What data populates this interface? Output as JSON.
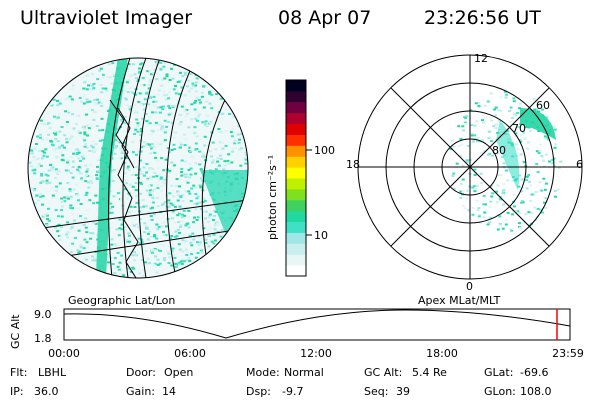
{
  "header": {
    "instrument": "Ultraviolet Imager",
    "date": "08 Apr 07",
    "time": "23:26:56 UT"
  },
  "left_panel": {
    "label": "Geographic Lat/Lon"
  },
  "right_panel": {
    "label": "Apex MLat/MLT",
    "mlt_labels": {
      "top": "12",
      "left": "18",
      "right": "6",
      "bottom": "0"
    },
    "mlat_labels": [
      "60",
      "70",
      "80"
    ]
  },
  "colorbar": {
    "unit": "photon cm⁻²s⁻¹",
    "ticks": [
      "100",
      "10"
    ],
    "colors": [
      "#ffffff",
      "#e8f6f6",
      "#c8eeee",
      "#9fe6e6",
      "#40e0c8",
      "#20d8a0",
      "#40d060",
      "#80e020",
      "#c0f000",
      "#ffff00",
      "#ffd000",
      "#ff9000",
      "#ff3000",
      "#e00000",
      "#b00030",
      "#700040",
      "#300030",
      "#000020"
    ]
  },
  "altitude_plot": {
    "ylabel": "GC Alt",
    "yticks": [
      "9.0",
      "1.8"
    ],
    "xticks": [
      "00:00",
      "06:00",
      "12:00",
      "18:00",
      "23:59"
    ],
    "current_time_color": "#ff0000"
  },
  "status": {
    "row1": [
      {
        "key": "Flt:",
        "value": "LBHL"
      },
      {
        "key": "Door:",
        "value": "Open"
      },
      {
        "key": "Mode:",
        "value": "Normal"
      },
      {
        "key": "GC Alt:",
        "value": "5.4 Re"
      },
      {
        "key": "GLat:",
        "value": "-69.6"
      }
    ],
    "row2": [
      {
        "key": "IP:",
        "value": "36.0"
      },
      {
        "key": "Gain:",
        "value": "14"
      },
      {
        "key": "Dsp:",
        "value": "-9.7"
      },
      {
        "key": "Seq:",
        "value": "39"
      },
      {
        "key": "GLon:",
        "value": "108.0"
      }
    ]
  }
}
